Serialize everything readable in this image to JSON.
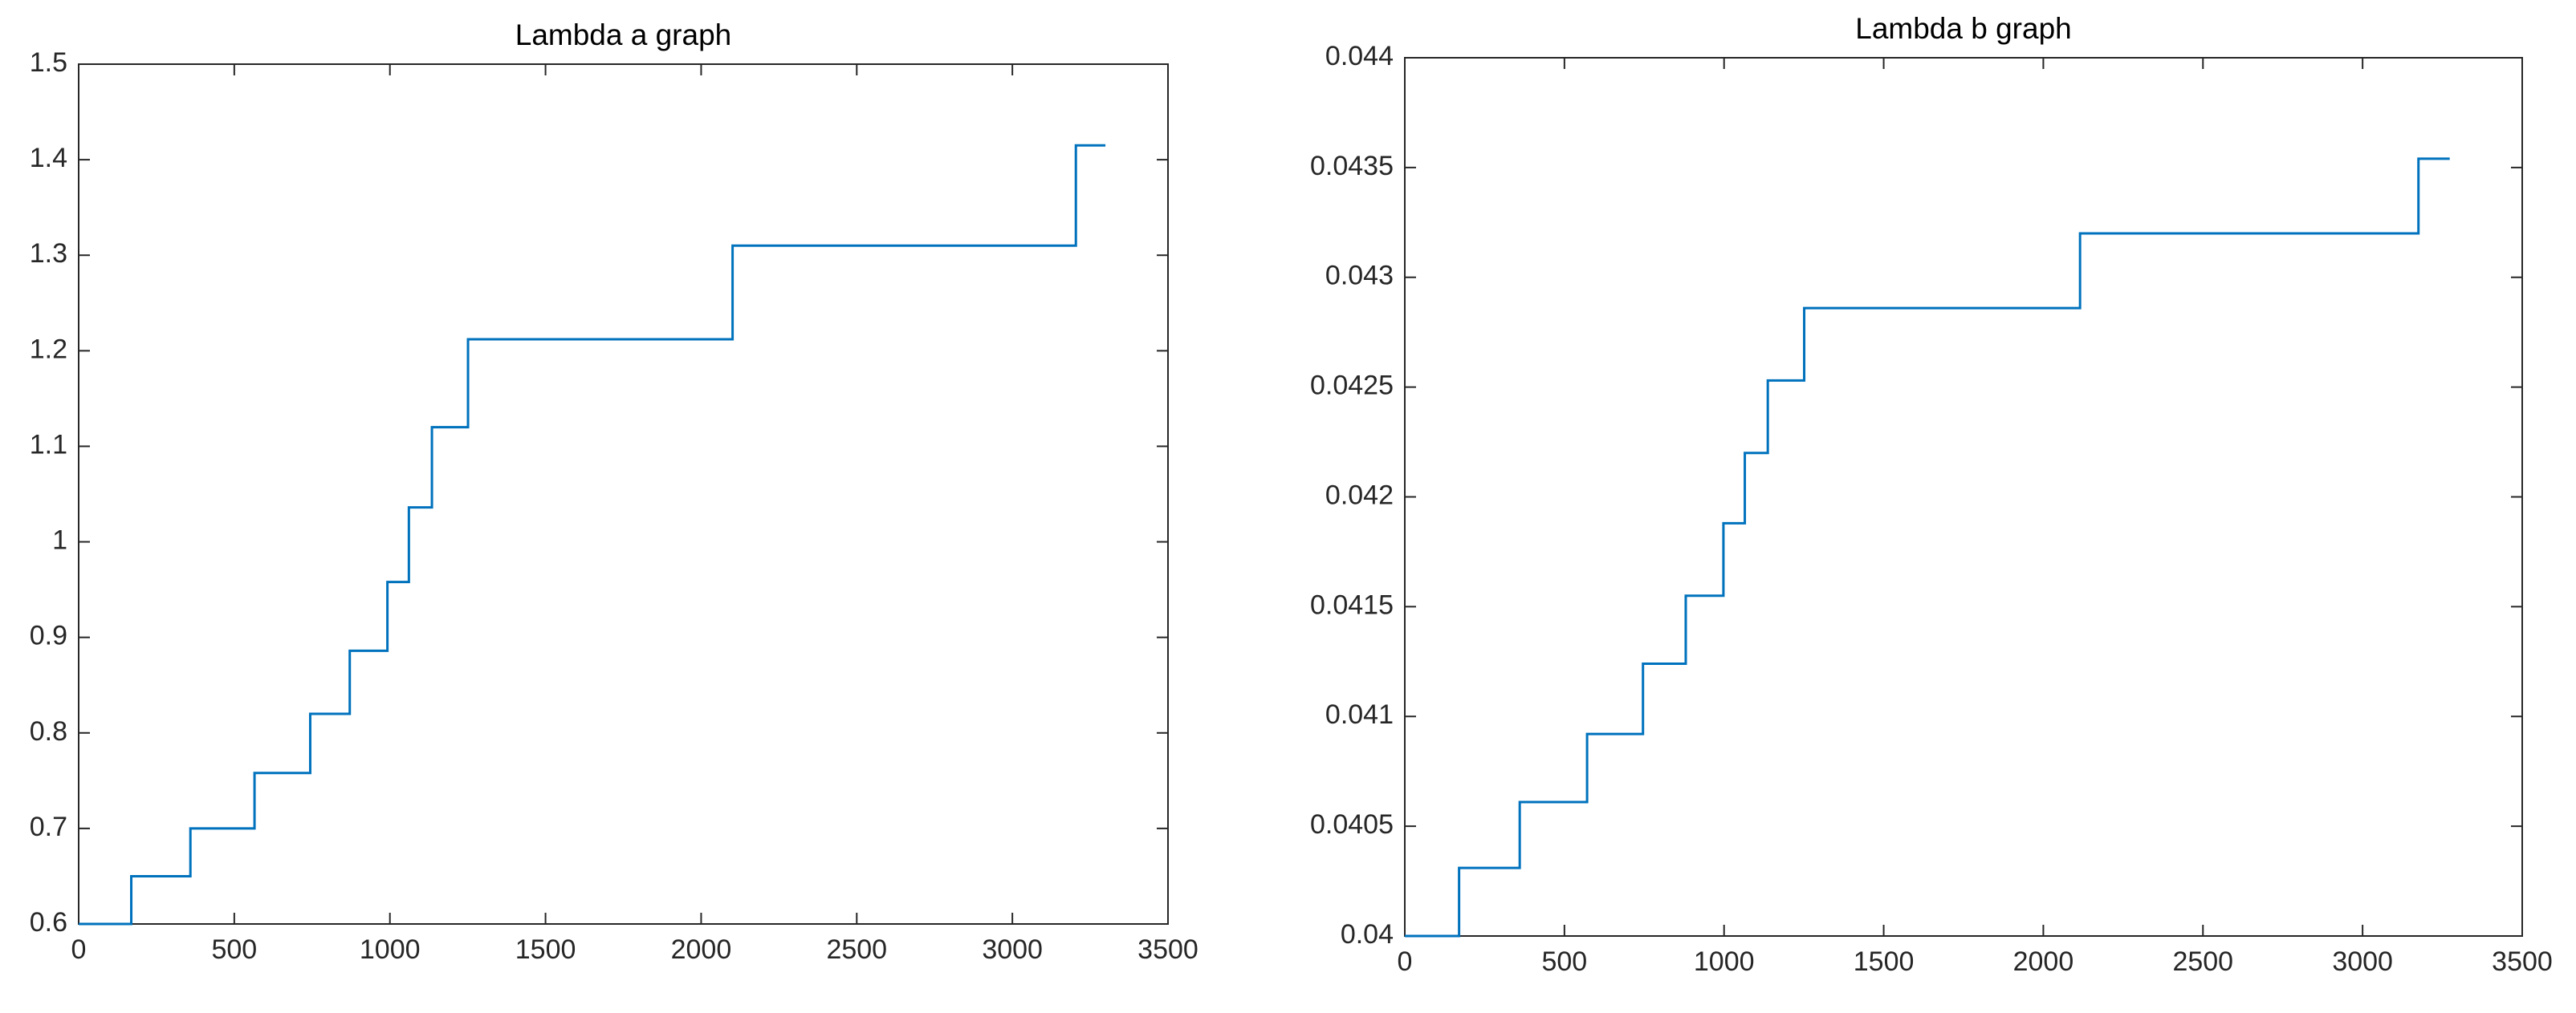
{
  "chart_data": [
    {
      "type": "line",
      "title": "Lambda a graph",
      "drawstyle": "steps-post",
      "x": [
        0,
        169,
        359,
        565,
        744,
        871,
        992,
        1061,
        1135,
        1251,
        2101,
        3204,
        3299
      ],
      "values": [
        0.6,
        0.65,
        0.7,
        0.758,
        0.82,
        0.886,
        0.958,
        1.036,
        1.12,
        1.212,
        1.31,
        1.415,
        1.415
      ],
      "color": "#0072bd",
      "xlim": [
        0,
        3500
      ],
      "xticks": [
        0,
        500,
        1000,
        1500,
        2000,
        2500,
        3000,
        3500
      ],
      "ylim": [
        0.6,
        1.5
      ],
      "yticks": [
        0.6,
        0.7,
        0.8,
        0.9,
        1,
        1.1,
        1.2,
        1.3,
        1.4,
        1.5
      ]
    },
    {
      "type": "line",
      "title": "Lambda b graph",
      "drawstyle": "steps-post",
      "x": [
        0,
        170,
        360,
        571,
        746,
        880,
        998,
        1065,
        1137,
        1251,
        2115,
        3175,
        3273
      ],
      "values": [
        0.04,
        0.04031,
        0.04061,
        0.04092,
        0.04124,
        0.04155,
        0.04188,
        0.0422,
        0.04253,
        0.04286,
        0.0432,
        0.04354,
        0.04354
      ],
      "color": "#0072bd",
      "xlim": [
        0,
        3500
      ],
      "xticks": [
        0,
        500,
        1000,
        1500,
        2000,
        2500,
        3000,
        3500
      ],
      "ylim": [
        0.04,
        0.044
      ],
      "yticks": [
        0.04,
        0.0405,
        0.041,
        0.0415,
        0.042,
        0.0425,
        0.043,
        0.0435,
        0.044
      ]
    }
  ]
}
